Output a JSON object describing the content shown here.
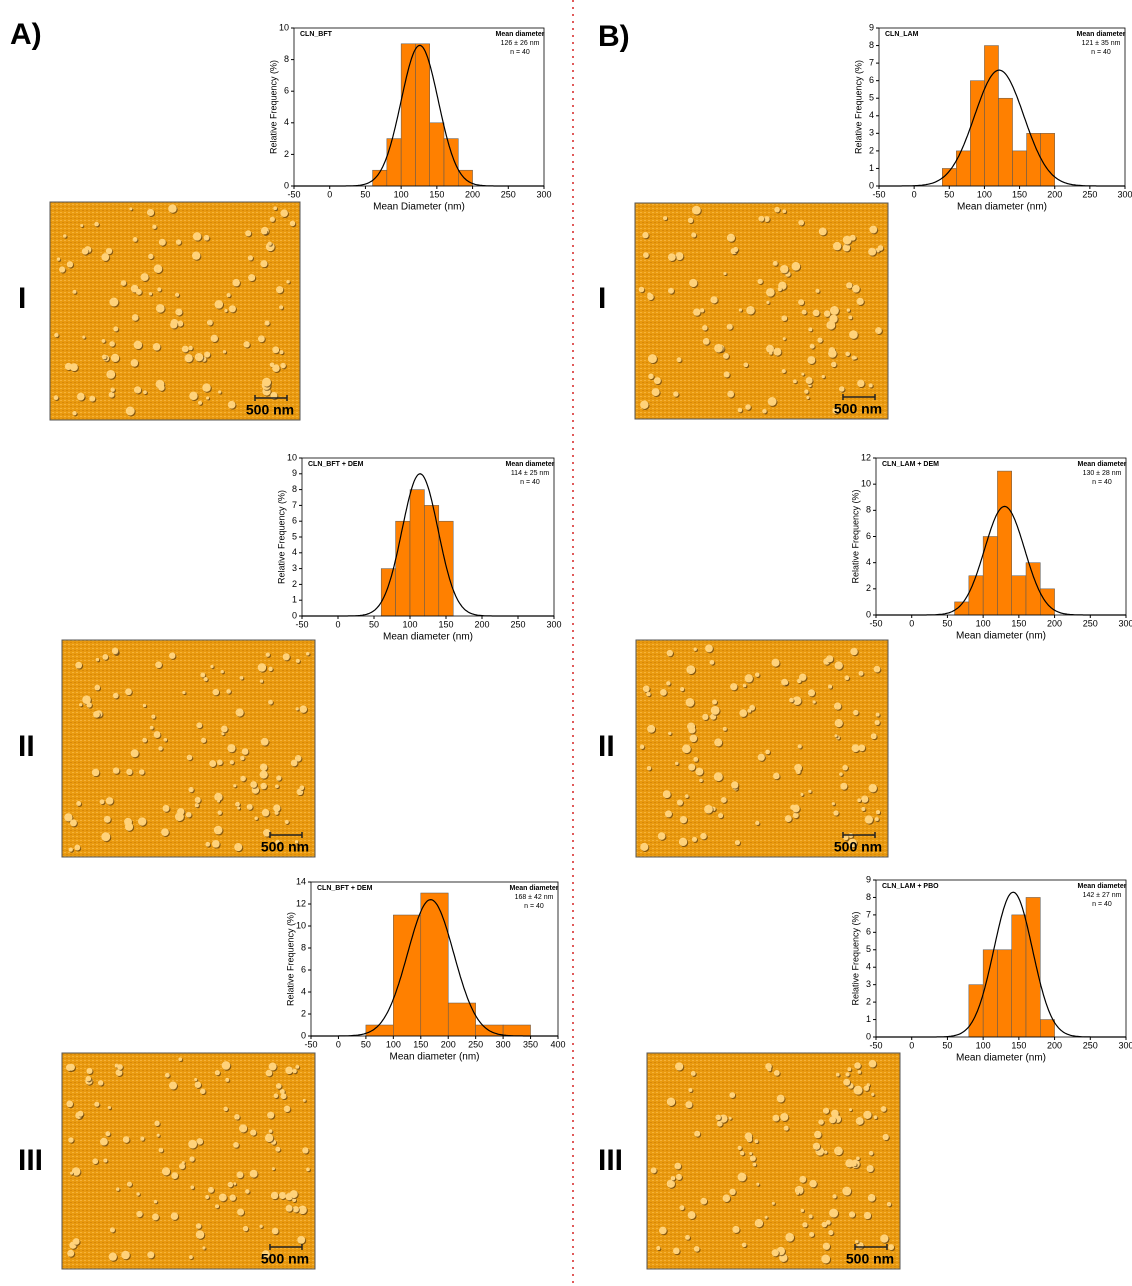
{
  "panel_labels": [
    "A)",
    "B)"
  ],
  "rows": [
    "I",
    "II",
    "III"
  ],
  "scale_bar": "500 nm",
  "chart_data": [
    {
      "type": "histogram",
      "title": "CLN_BFT",
      "annotation": [
        "Mean diameter",
        "126 ± 26 nm",
        "n = 40"
      ],
      "xlabel": "Mean Diameter (nm)",
      "ylabel": "Relative Frequency (%)",
      "color": "#ff8000",
      "bins": [
        60,
        80,
        100,
        120,
        140,
        160,
        180,
        200
      ],
      "values": [
        1,
        3,
        9,
        9,
        4,
        3,
        1
      ],
      "fit": {
        "mean": 126,
        "sd": 26,
        "peak": 8.9
      },
      "xlim": [
        -50,
        300
      ],
      "xticks": [
        -50,
        0,
        50,
        100,
        150,
        200,
        250,
        300
      ],
      "ylim": [
        0,
        10
      ],
      "yticks": [
        0,
        2,
        4,
        6,
        8,
        10
      ]
    },
    {
      "type": "histogram",
      "title": "CLN_BFT + DEM",
      "annotation": [
        "Mean diameter",
        "114 ± 25 nm",
        "n = 40"
      ],
      "xlabel": "Mean diameter (nm)",
      "ylabel": "Relative Frequency (%)",
      "color": "#ff8000",
      "bins": [
        60,
        80,
        100,
        120,
        140,
        160
      ],
      "values": [
        3,
        6,
        8,
        7,
        6
      ],
      "fit": {
        "mean": 114,
        "sd": 25,
        "peak": 9
      },
      "xlim": [
        -50,
        300
      ],
      "xticks": [
        -50,
        0,
        50,
        100,
        150,
        200,
        250,
        300
      ],
      "ylim": [
        0,
        10
      ],
      "yticks": [
        0,
        1,
        2,
        3,
        4,
        5,
        6,
        7,
        8,
        9,
        10
      ]
    },
    {
      "type": "histogram",
      "title": "CLN_BFT + DEM",
      "annotation": [
        "Mean diameter",
        "168 ± 42 nm",
        "n = 40"
      ],
      "xlabel": "Mean diameter (nm)",
      "ylabel": "Relative Frequency (%)",
      "color": "#ff8000",
      "bins": [
        50,
        100,
        150,
        200,
        250,
        300,
        350
      ],
      "values": [
        1,
        11,
        13,
        3,
        1,
        1
      ],
      "fit": {
        "mean": 168,
        "sd": 42,
        "peak": 12.4
      },
      "xlim": [
        -50,
        400
      ],
      "xticks": [
        -50,
        0,
        50,
        100,
        150,
        200,
        250,
        300,
        350,
        400
      ],
      "ylim": [
        0,
        14
      ],
      "yticks": [
        0,
        2,
        4,
        6,
        8,
        10,
        12,
        14
      ]
    },
    {
      "type": "histogram",
      "title": "CLN_LAM",
      "annotation": [
        "Mean diameter",
        "121 ± 35 nm",
        "n = 40"
      ],
      "xlabel": "Mean diameter (nm)",
      "ylabel": "Relative Frequency (%)",
      "color": "#ff8000",
      "bins": [
        40,
        60,
        80,
        100,
        120,
        140,
        160,
        180,
        200
      ],
      "values": [
        1,
        2,
        6,
        8,
        5,
        2,
        3,
        3
      ],
      "fit": {
        "mean": 121,
        "sd": 35,
        "peak": 6.6
      },
      "xlim": [
        -50,
        300
      ],
      "xticks": [
        -50,
        0,
        50,
        100,
        150,
        200,
        250,
        300
      ],
      "ylim": [
        0,
        9
      ],
      "yticks": [
        0,
        1,
        2,
        3,
        4,
        5,
        6,
        7,
        8,
        9
      ]
    },
    {
      "type": "histogram",
      "title": "CLN_LAM + DEM",
      "annotation": [
        "Mean diameter",
        "130 ± 28 nm",
        "n = 40"
      ],
      "xlabel": "Mean diameter (nm)",
      "ylabel": "Relative Frequency (%)",
      "color": "#ff8000",
      "bins": [
        60,
        80,
        100,
        120,
        140,
        160,
        180,
        200
      ],
      "values": [
        1,
        3,
        6,
        11,
        3,
        4,
        2
      ],
      "fit": {
        "mean": 130,
        "sd": 28,
        "peak": 8.3
      },
      "xlim": [
        -50,
        300
      ],
      "xticks": [
        -50,
        0,
        50,
        100,
        150,
        200,
        250,
        300
      ],
      "ylim": [
        0,
        12
      ],
      "yticks": [
        0,
        2,
        4,
        6,
        8,
        10,
        12
      ]
    },
    {
      "type": "histogram",
      "title": "CLN_LAM + PBO",
      "annotation": [
        "Mean diameter",
        "142 ± 27 nm",
        "n = 40"
      ],
      "xlabel": "Mean diameter (nm)",
      "ylabel": "Relative Frequency (%)",
      "color": "#ff8000",
      "bins": [
        80,
        100,
        120,
        140,
        160,
        180,
        200
      ],
      "values": [
        3,
        5,
        5,
        7,
        8,
        1
      ],
      "fit": {
        "mean": 142,
        "sd": 27,
        "peak": 8.3
      },
      "xlim": [
        -50,
        300
      ],
      "xticks": [
        -50,
        0,
        50,
        100,
        150,
        200,
        250,
        300
      ],
      "ylim": [
        0,
        9
      ],
      "yticks": [
        0,
        1,
        2,
        3,
        4,
        5,
        6,
        7,
        8,
        9
      ]
    }
  ]
}
